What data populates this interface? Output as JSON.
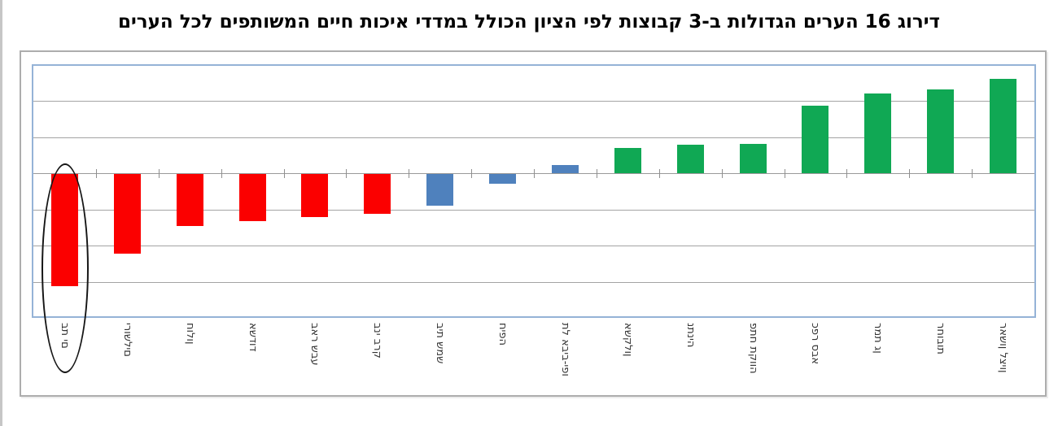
{
  "title": "דירוג 16 הערים הגדולות ב-3 קבוצות לפי הציון הכולל במדדי איכות חיים המשותפים לכל הערים",
  "chart_data": {
    "type": "bar",
    "title": "דירוג 16 הערים הגדולות ב-3 קבוצות לפי הציון הכולל במדדי איכות חיים המשותפים לכל הערים",
    "categories": [
      "בת ים",
      "ירושלים",
      "חולון",
      "אשדוד",
      "באר שבע",
      "בני ברק",
      "בית שמש",
      "חיפה",
      "תל אביב-יפו",
      "אשקלון",
      "נתניה",
      "פתח תקווה",
      "כפר סבא",
      "רמת גן",
      "רחובות",
      "ראשון לציון"
    ],
    "values": [
      -3.1,
      -2.21,
      -1.44,
      -1.31,
      -1.18,
      -1.11,
      -0.87,
      -0.27,
      0.22,
      0.7,
      0.79,
      0.81,
      1.87,
      2.2,
      2.31,
      2.6
    ],
    "bar_groups": [
      "low",
      "low",
      "low",
      "low",
      "low",
      "low",
      "mid",
      "mid",
      "mid",
      "high",
      "high",
      "high",
      "high",
      "high",
      "high",
      "high"
    ],
    "group_colors": {
      "low": "#fb0000",
      "mid": "#4f81bd",
      "high": "#10a854"
    },
    "xlabel": "",
    "ylabel": "",
    "ylim": [
      -4,
      3
    ],
    "gridline_spacing": 1,
    "y_tick_labels_visible": false,
    "legend": "none",
    "category_label_rotation": "vertical (rotated 90°, read top to bottom)",
    "annotation": {
      "shape": "ellipse",
      "target_category": "בת ים",
      "stroke_color": "#161616"
    }
  },
  "colors": {
    "negative_group": "#fb0000",
    "middle_group": "#4f81bd",
    "positive_group": "#10a854",
    "plot_border": "#95b3d7",
    "panel_border": "#adadad",
    "gridline": "#a4a4a4",
    "title_text": "#000000",
    "label_text": "#333333"
  }
}
